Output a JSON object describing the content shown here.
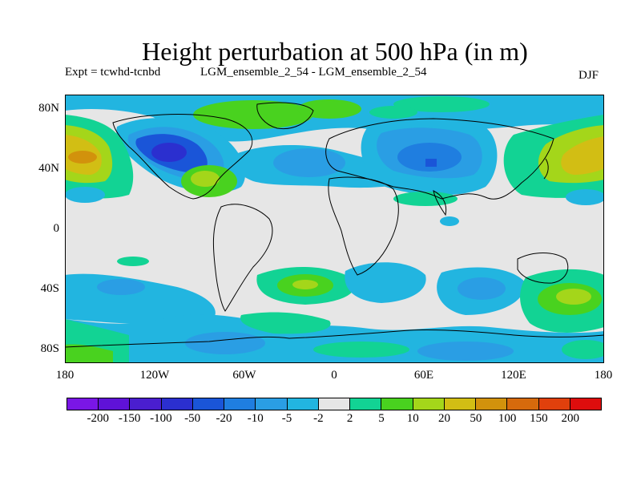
{
  "title": "Height perturbation at 500 hPa (in m)",
  "experiment": "Expt = tcwhd-tcnbd",
  "runs": "LGM_ensemble_2_54 - LGM_ensemble_2_54",
  "season": "DJF",
  "lat_labels": [
    "80N",
    "40N",
    "0",
    "40S",
    "80S"
  ],
  "lon_labels": [
    "180",
    "120W",
    "60W",
    "0",
    "60E",
    "120E",
    "180"
  ],
  "colorbar": {
    "labels": [
      "-200",
      "-150",
      "-100",
      "-50",
      "-20",
      "-10",
      "-5",
      "-2",
      "2",
      "5",
      "10",
      "20",
      "50",
      "100",
      "150",
      "200"
    ],
    "colors": [
      "#7a16e6",
      "#5f12d8",
      "#4a1ecf",
      "#2b2fcf",
      "#1a55d8",
      "#1f7ee0",
      "#2a9ee4",
      "#22b5e0",
      "#e6e6e6",
      "#12d394",
      "#49d21f",
      "#a4d61a",
      "#d2be14",
      "#d2920c",
      "#d66a0c",
      "#e0400c",
      "#de0d0d"
    ]
  },
  "colors": {
    "neutral": "#e6e6e6",
    "coast": "#000000"
  }
}
